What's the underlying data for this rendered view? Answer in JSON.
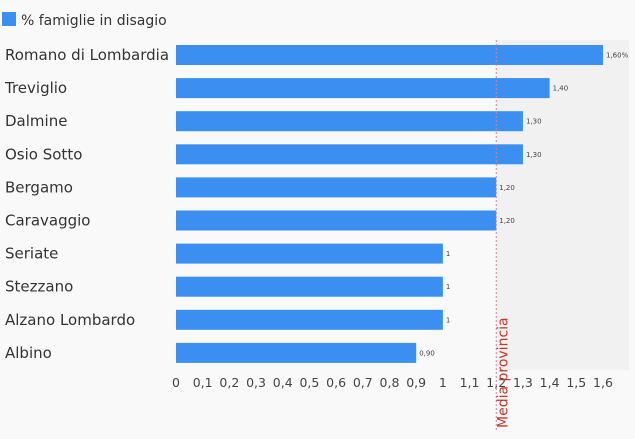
{
  "chart_data": {
    "type": "bar",
    "orientation": "horizontal",
    "categories": [
      "Romano di Lombardia",
      "Treviglio",
      "Dalmine",
      "Osio Sotto",
      "Bergamo",
      "Caravaggio",
      "Seriate",
      "Stezzano",
      "Alzano Lombardo",
      "Albino"
    ],
    "series": [
      {
        "name": "% famiglie in disagio",
        "values": [
          1.6,
          1.4,
          1.3,
          1.3,
          1.2,
          1.2,
          1.0,
          1.0,
          1.0,
          0.9
        ],
        "labels": [
          "1,60%",
          "1,40",
          "1,30",
          "1,30",
          "1,20",
          "1,20",
          "1",
          "1",
          "1",
          "0,90"
        ],
        "color": "#3a8ff0"
      }
    ],
    "xlim": [
      0,
      1.65
    ],
    "xticks": [
      0,
      0.1,
      0.2,
      0.3,
      0.4,
      0.5,
      0.6,
      0.7,
      0.8,
      0.9,
      1.0,
      1.1,
      1.2,
      1.3,
      1.4,
      1.5,
      1.6
    ],
    "xtick_labels": [
      "0",
      "0,1",
      "0,2",
      "0,3",
      "0,4",
      "0,5",
      "0,6",
      "0,7",
      "0,8",
      "0,9",
      "1",
      "1,1",
      "1,2",
      "1,3",
      "1,4",
      "1,5",
      "1,6"
    ],
    "reference_line": {
      "value": 1.2,
      "label": "Media provincia",
      "color": "#e08090"
    },
    "legend": {
      "position": "top-left"
    },
    "grid": false
  }
}
